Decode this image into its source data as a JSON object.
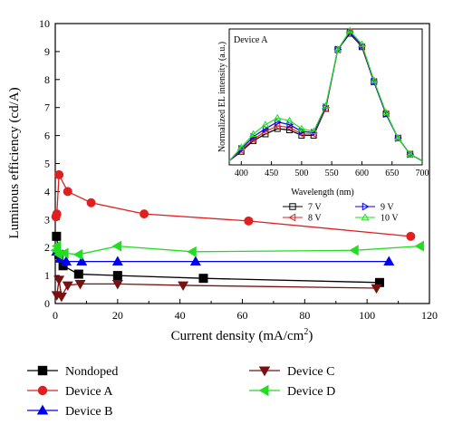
{
  "chart_data": [
    {
      "type": "scatter",
      "xlabel": "Current density (mA/cm",
      "xlabel_sup": "2",
      "xlabel_end": ")",
      "ylabel": "Luminous efficiency (cd/A)",
      "xlim": [
        0,
        120
      ],
      "ylim": [
        0,
        10
      ],
      "x_ticks": [
        0,
        20,
        40,
        60,
        80,
        100,
        120
      ],
      "y_ticks": [
        0,
        1,
        2,
        3,
        4,
        5,
        6,
        7,
        8,
        9,
        10
      ],
      "legend_position": "bottom",
      "series": [
        {
          "name": "Nondoped",
          "color": "#000000",
          "marker": "square",
          "x": [
            0.4,
            1.2,
            2.5,
            7.5,
            20,
            47.5,
            104
          ],
          "y": [
            2.4,
            1.75,
            1.35,
            1.05,
            1.0,
            0.9,
            0.75
          ]
        },
        {
          "name": "Device A",
          "color": "#e02020",
          "marker": "circle",
          "x": [
            0.2,
            0.5,
            1.2,
            4,
            11.5,
            28.5,
            62,
            114
          ],
          "y": [
            3.1,
            3.2,
            4.6,
            4.0,
            3.6,
            3.2,
            2.95,
            2.4
          ]
        },
        {
          "name": "Device B",
          "color": "#0000ee",
          "marker": "triangle-up",
          "x": [
            0.4,
            1.5,
            3.5,
            8.5,
            20,
            45,
            107
          ],
          "y": [
            1.85,
            1.6,
            1.5,
            1.5,
            1.5,
            1.5,
            1.5
          ]
        },
        {
          "name": "Device C",
          "color": "#7a1010",
          "marker": "triangle-down",
          "x": [
            0.5,
            1.2,
            2,
            4,
            8,
            20,
            41,
            103
          ],
          "y": [
            0.3,
            0.85,
            0.25,
            0.65,
            0.7,
            0.7,
            0.65,
            0.55
          ]
        },
        {
          "name": "Device D",
          "color": "#22dd22",
          "marker": "triangle-left",
          "x": [
            0.2,
            0.6,
            1.2,
            3,
            7.5,
            20,
            44,
            96,
            117
          ],
          "y": [
            1.9,
            2.05,
            1.75,
            1.8,
            1.75,
            2.05,
            1.85,
            1.9,
            2.05
          ]
        }
      ]
    },
    {
      "type": "line",
      "title": "Device A",
      "xlabel": "Wavelength (nm)",
      "ylabel": "Normalized EL intensity (a.u.)",
      "xlim": [
        380,
        700
      ],
      "ylim": [
        0,
        1
      ],
      "x_ticks": [
        400,
        450,
        500,
        550,
        600,
        650,
        700
      ],
      "legend_position": "bottom",
      "series": [
        {
          "name": "7 V",
          "color": "#000000",
          "marker": "square-open",
          "x": [
            380,
            400,
            420,
            440,
            460,
            480,
            500,
            520,
            540,
            560,
            580,
            600,
            620,
            640,
            660,
            680,
            700
          ],
          "y": [
            0.03,
            0.1,
            0.18,
            0.23,
            0.27,
            0.26,
            0.22,
            0.22,
            0.42,
            0.86,
            0.98,
            0.88,
            0.62,
            0.38,
            0.2,
            0.08,
            0.03
          ]
        },
        {
          "name": "8 V",
          "color": "#e02020",
          "marker": "triangle-left-open",
          "x": [
            380,
            400,
            420,
            440,
            460,
            480,
            500,
            520,
            540,
            560,
            580,
            600,
            620,
            640,
            660,
            680,
            700
          ],
          "y": [
            0.03,
            0.11,
            0.19,
            0.25,
            0.29,
            0.28,
            0.23,
            0.23,
            0.42,
            0.86,
            0.99,
            0.88,
            0.62,
            0.38,
            0.2,
            0.08,
            0.03
          ]
        },
        {
          "name": "9 V",
          "color": "#0000ee",
          "marker": "triangle-right-open",
          "x": [
            380,
            400,
            420,
            440,
            460,
            480,
            500,
            520,
            540,
            560,
            580,
            600,
            620,
            640,
            660,
            680,
            700
          ],
          "y": [
            0.03,
            0.12,
            0.21,
            0.27,
            0.32,
            0.3,
            0.25,
            0.24,
            0.43,
            0.86,
            0.99,
            0.89,
            0.62,
            0.38,
            0.2,
            0.08,
            0.03
          ]
        },
        {
          "name": "10 V",
          "color": "#22dd22",
          "marker": "triangle-up-open",
          "x": [
            380,
            400,
            420,
            440,
            460,
            480,
            500,
            520,
            540,
            560,
            580,
            600,
            620,
            640,
            660,
            680,
            700
          ],
          "y": [
            0.03,
            0.13,
            0.23,
            0.3,
            0.35,
            0.33,
            0.27,
            0.25,
            0.44,
            0.86,
            1.0,
            0.9,
            0.63,
            0.39,
            0.2,
            0.08,
            0.03
          ]
        }
      ]
    }
  ]
}
